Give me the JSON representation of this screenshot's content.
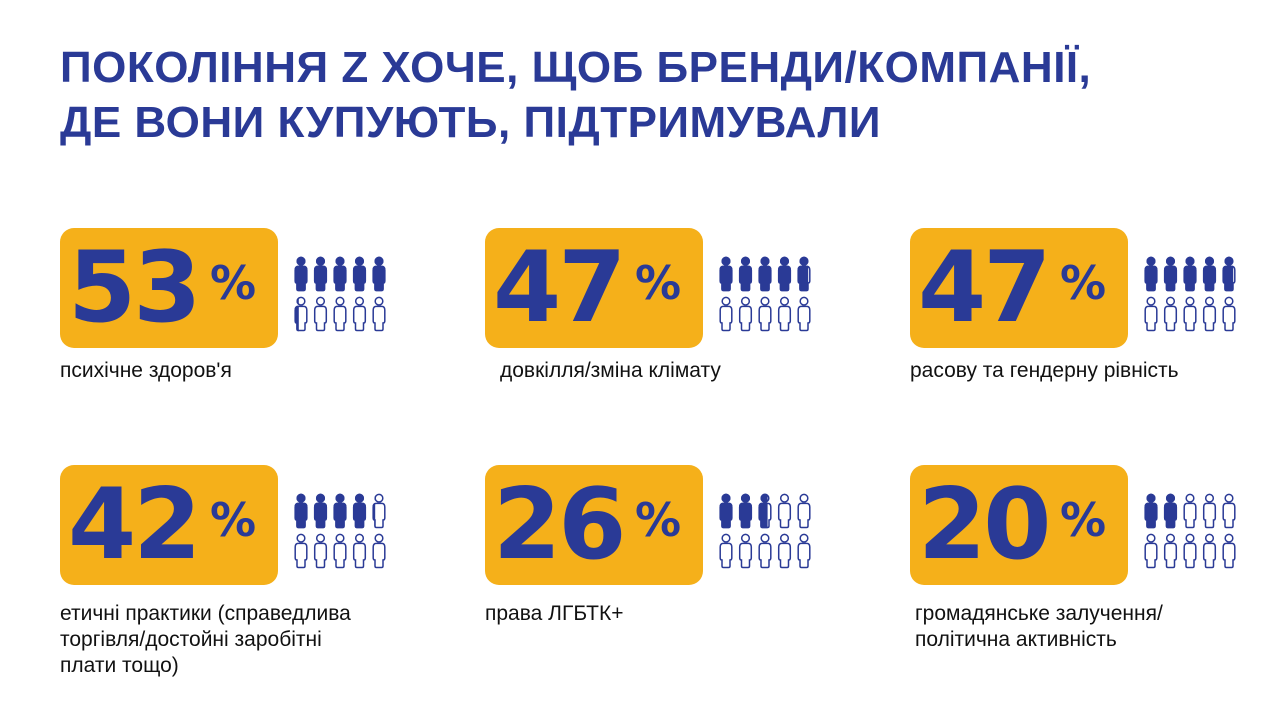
{
  "title": {
    "line1": "ПОКОЛІННЯ Z ХОЧЕ, ЩОБ БРЕНДИ/КОМПАНІЇ,",
    "line2": "ДЕ ВОНИ КУПУЮТЬ, ПІДТРИМУВАЛИ"
  },
  "colors": {
    "accent_yellow": "#f5b01a",
    "brand_blue": "#2a3a96",
    "text": "#111111"
  },
  "icons": "person-icon",
  "stats": [
    {
      "number": "53",
      "percent": "%",
      "value": 53,
      "label": "психічне здоров'я"
    },
    {
      "number": "47",
      "percent": "%",
      "value": 47,
      "label": "довкілля/зміна клімату"
    },
    {
      "number": "47",
      "percent": "%",
      "value": 47,
      "label": "расову та гендерну рівність"
    },
    {
      "number": "42",
      "percent": "%",
      "value": 42,
      "label_line1": "етичні практики (справедлива",
      "label_line2": "торгівля/достойні заробітні",
      "label_line3": "плати тощо)"
    },
    {
      "number": "26",
      "percent": "%",
      "value": 26,
      "label": "права ЛГБТК+"
    },
    {
      "number": "20",
      "percent": "%",
      "value": 20,
      "label_line1": "громадянське залучення/",
      "label_line2": "політична активність"
    }
  ]
}
